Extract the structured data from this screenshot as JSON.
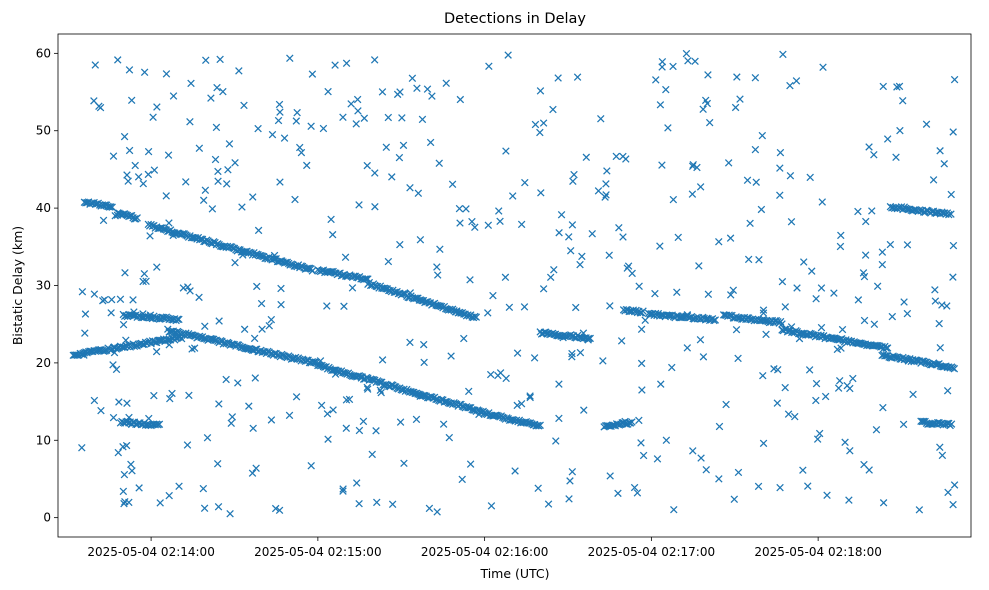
{
  "chart_data": {
    "type": "scatter",
    "title": "Detections in Delay",
    "xlabel": "Time (UTC)",
    "ylabel": "Bistatic Delay (km)",
    "date": "2025-05-04",
    "xlim_seconds": [
      -33.5,
      295
    ],
    "ylim": [
      -2.5,
      62.5
    ],
    "x_ticks": [
      {
        "t": 0,
        "label": "2025-05-04 02:14:00"
      },
      {
        "t": 60,
        "label": "2025-05-04 02:15:00"
      },
      {
        "t": 120,
        "label": "2025-05-04 02:16:00"
      },
      {
        "t": 180,
        "label": "2025-05-04 02:17:00"
      },
      {
        "t": 240,
        "label": "2025-05-04 02:18:00"
      }
    ],
    "y_ticks": [
      0,
      10,
      20,
      30,
      40,
      50,
      60
    ],
    "marker": "x",
    "color": "#1f77b4",
    "grid": false,
    "legend": "none",
    "tracks": [
      {
        "t_start": -24,
        "t_end": -14,
        "y_start": 40.8,
        "y_end": 40.2
      },
      {
        "t_start": -12,
        "t_end": -5,
        "y_start": 39.5,
        "y_end": 38.6
      },
      {
        "t_start": -10,
        "t_end": 10,
        "y_start": 26.2,
        "y_end": 25.6
      },
      {
        "t_start": -11,
        "t_end": -7,
        "y_start": 12.4,
        "y_end": 12.2
      },
      {
        "t_start": -7,
        "t_end": 3,
        "y_start": 12.2,
        "y_end": 11.9
      },
      {
        "t_start": -28,
        "t_end": 11,
        "y_start": 21.0,
        "y_end": 23.3
      },
      {
        "t_start": -1,
        "t_end": 58,
        "y_start": 37.8,
        "y_end": 32.0
      },
      {
        "t_start": 6,
        "t_end": 60,
        "y_start": 24.2,
        "y_end": 19.9
      },
      {
        "t_start": 60,
        "t_end": 78,
        "y_start": 32.0,
        "y_end": 30.8
      },
      {
        "t_start": 78,
        "t_end": 117,
        "y_start": 30.3,
        "y_end": 25.8
      },
      {
        "t_start": 60,
        "t_end": 120,
        "y_start": 19.7,
        "y_end": 13.6
      },
      {
        "t_start": 120,
        "t_end": 140,
        "y_start": 13.5,
        "y_end": 11.8
      },
      {
        "t_start": 140,
        "t_end": 158,
        "y_start": 23.9,
        "y_end": 23.2
      },
      {
        "t_start": 163,
        "t_end": 173,
        "y_start": 11.8,
        "y_end": 12.3
      },
      {
        "t_start": 170,
        "t_end": 177,
        "y_start": 26.8,
        "y_end": 26.6
      },
      {
        "t_start": 179,
        "t_end": 203,
        "y_start": 26.3,
        "y_end": 25.6
      },
      {
        "t_start": 206,
        "t_end": 227,
        "y_start": 26.1,
        "y_end": 25.2
      },
      {
        "t_start": 227,
        "t_end": 265,
        "y_start": 24.3,
        "y_end": 21.9
      },
      {
        "t_start": 263,
        "t_end": 289,
        "y_start": 21.0,
        "y_end": 19.4
      },
      {
        "t_start": 266,
        "t_end": 287,
        "y_start": 40.2,
        "y_end": 39.2
      },
      {
        "t_start": 277,
        "t_end": 288,
        "y_start": 12.3,
        "y_end": 12.0
      }
    ],
    "clutter": {
      "t_range": [
        -26,
        290
      ],
      "y_range": [
        0.5,
        60
      ],
      "count": 540
    }
  }
}
